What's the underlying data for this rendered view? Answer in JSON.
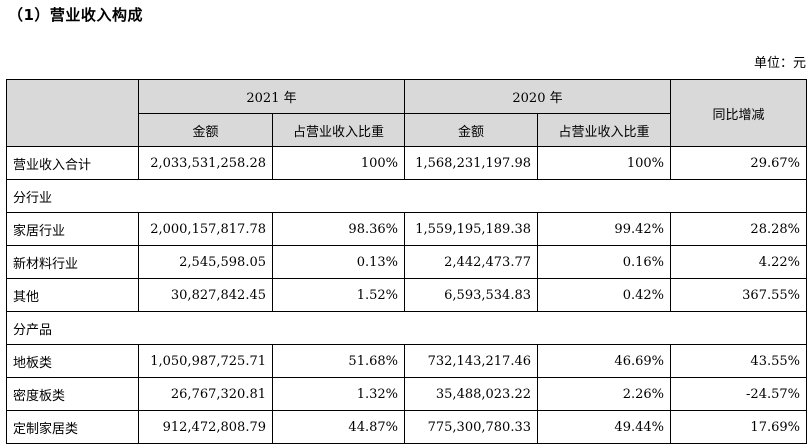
{
  "section_title": "（1）营业收入构成",
  "unit_label": "单位：元",
  "headers": {
    "year_2021": "2021 年",
    "year_2020": "2020 年",
    "amount": "金额",
    "share": "占营业收入比重",
    "yoy": "同比增减"
  },
  "total_row": {
    "label": "营业收入合计",
    "amount_2021": "2,033,531,258.28",
    "share_2021": "100%",
    "amount_2020": "1,568,231,197.98",
    "share_2020": "100%",
    "yoy": "29.67%"
  },
  "groups": {
    "industry": "分行业",
    "product": "分产品"
  },
  "industry_rows": [
    {
      "label": "家居行业",
      "amount_2021": "2,000,157,817.78",
      "share_2021": "98.36%",
      "amount_2020": "1,559,195,189.38",
      "share_2020": "99.42%",
      "yoy": "28.28%"
    },
    {
      "label": "新材料行业",
      "amount_2021": "2,545,598.05",
      "share_2021": "0.13%",
      "amount_2020": "2,442,473.77",
      "share_2020": "0.16%",
      "yoy": "4.22%"
    },
    {
      "label": "其他",
      "amount_2021": "30,827,842.45",
      "share_2021": "1.52%",
      "amount_2020": "6,593,534.83",
      "share_2020": "0.42%",
      "yoy": "367.55%"
    }
  ],
  "product_rows": [
    {
      "label": "地板类",
      "amount_2021": "1,050,987,725.71",
      "share_2021": "51.68%",
      "amount_2020": "732,143,217.46",
      "share_2020": "46.69%",
      "yoy": "43.55%"
    },
    {
      "label": "密度板类",
      "amount_2021": "26,767,320.81",
      "share_2021": "1.32%",
      "amount_2020": "35,488,023.22",
      "share_2020": "2.26%",
      "yoy": "-24.57%"
    },
    {
      "label": "定制家居类",
      "amount_2021": "912,472,808.79",
      "share_2021": "44.87%",
      "amount_2020": "775,300,780.33",
      "share_2020": "49.44%",
      "yoy": "17.69%"
    }
  ]
}
